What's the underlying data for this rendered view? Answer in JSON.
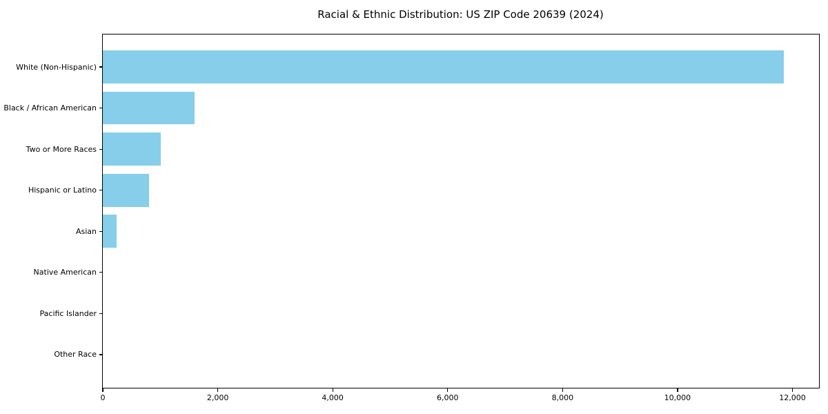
{
  "chart_data": {
    "type": "bar",
    "orientation": "horizontal",
    "title": "Racial & Ethnic Distribution: US ZIP Code 20639 (2024)",
    "categories": [
      "White (Non-Hispanic)",
      "Black / African American",
      "Two or More Races",
      "Hispanic or Latino",
      "Asian",
      "Native American",
      "Pacific Islander",
      "Other Race"
    ],
    "values": [
      11850,
      1600,
      1010,
      800,
      240,
      0,
      0,
      0
    ],
    "xlabel": "",
    "ylabel": "",
    "xlim": [
      0,
      12450
    ],
    "xticks": {
      "values": [
        0,
        2000,
        4000,
        6000,
        8000,
        10000,
        12000
      ],
      "labels": [
        "0",
        "2,000",
        "4,000",
        "6,000",
        "8,000",
        "10,000",
        "12,000"
      ]
    },
    "grid": false,
    "legend": null,
    "colors": {
      "bar": "#87CEEB",
      "spine": "#000000",
      "text": "#000000",
      "background": "#FFFFFF"
    }
  }
}
